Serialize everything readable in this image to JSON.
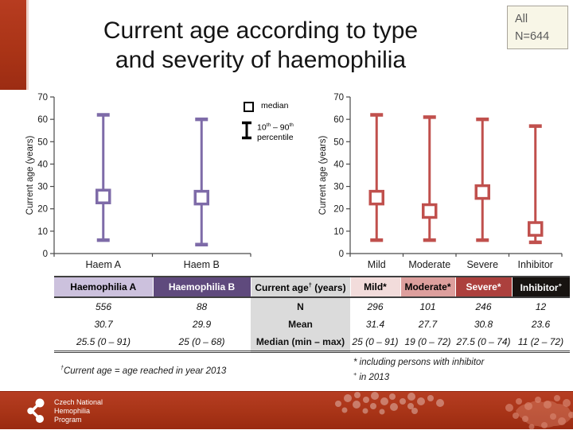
{
  "slide": {
    "title": {
      "line1": "Current age according to type",
      "line2": "and severity of haemophilia"
    },
    "badge": {
      "line1": "All",
      "line2": "N=644"
    }
  },
  "legend": {
    "median_label": "median",
    "pct_10": "10",
    "pct_sup1": "th",
    "pct_mid": " – 90",
    "pct_sup2": "th",
    "pct_line2": "percentile"
  },
  "chart_data": [
    {
      "type": "box-whisker",
      "ylabel": "Current age (years)",
      "ylim": [
        0,
        70
      ],
      "ytick_step": 10,
      "color": "#7e6ba8",
      "categories": [
        "Haem A",
        "Haem B"
      ],
      "median": [
        25.5,
        25
      ],
      "p10": [
        6,
        4
      ],
      "p90": [
        62,
        60
      ],
      "legend": [
        "median",
        "10th – 90th percentile"
      ],
      "grid": false
    },
    {
      "type": "box-whisker",
      "ylabel": "Current age (years)",
      "ylim": [
        0,
        70
      ],
      "ytick_step": 10,
      "color": "#c0504d",
      "categories": [
        "Mild",
        "Moderate",
        "Severe",
        "Inhibitor"
      ],
      "median": [
        25,
        19,
        27.5,
        11
      ],
      "p10": [
        6,
        6,
        6,
        5
      ],
      "p90": [
        62,
        61,
        60,
        57
      ],
      "grid": false
    }
  ],
  "table": {
    "headers": [
      {
        "text": "Haemophilia A"
      },
      {
        "text": "Haemophilia B"
      },
      {
        "pre": "Current age",
        "sup": "†",
        "post": " (years)"
      },
      {
        "text": "Mild*"
      },
      {
        "text": "Moderate*"
      },
      {
        "text": "Severe*"
      },
      {
        "text": "Inhibitor",
        "sup": "+"
      }
    ],
    "rows": [
      [
        "556",
        "88",
        "N",
        "296",
        "101",
        "246",
        "12"
      ],
      [
        "30.7",
        "29.9",
        "Mean",
        "31.4",
        "27.7",
        "30.8",
        "23.6"
      ],
      [
        "25.5 (0 – 91)",
        "25 (0 – 68)",
        "Median (min – max)",
        "25 (0 – 91)",
        "19 (0 – 72)",
        "27.5 (0 – 74)",
        "11 (2 – 72)"
      ]
    ]
  },
  "footnotes": {
    "left_sup": "†",
    "left_text": "Current age = age reached in year 2013",
    "right1": "* including persons with inhibitor",
    "right2_sup": "+",
    "right2_text": " in 2013"
  },
  "footer": {
    "logo_line1": "Czech National",
    "logo_line2": "Hemophilia",
    "logo_line3": "Program"
  },
  "colors": {
    "accent_red": "#a93316",
    "chart_purple": "#7e6ba8",
    "chart_red": "#c0504d",
    "header_haem_a": "#ccc1dd",
    "header_haem_b": "#5f4a7d",
    "header_mid_gray": "#d9d9d9",
    "header_mild": "#f2dcdb",
    "header_moderate": "#dd9f9d",
    "header_severe": "#ac403d",
    "header_inhibitor": "#171310",
    "badge_bg": "#f8f6e7"
  }
}
